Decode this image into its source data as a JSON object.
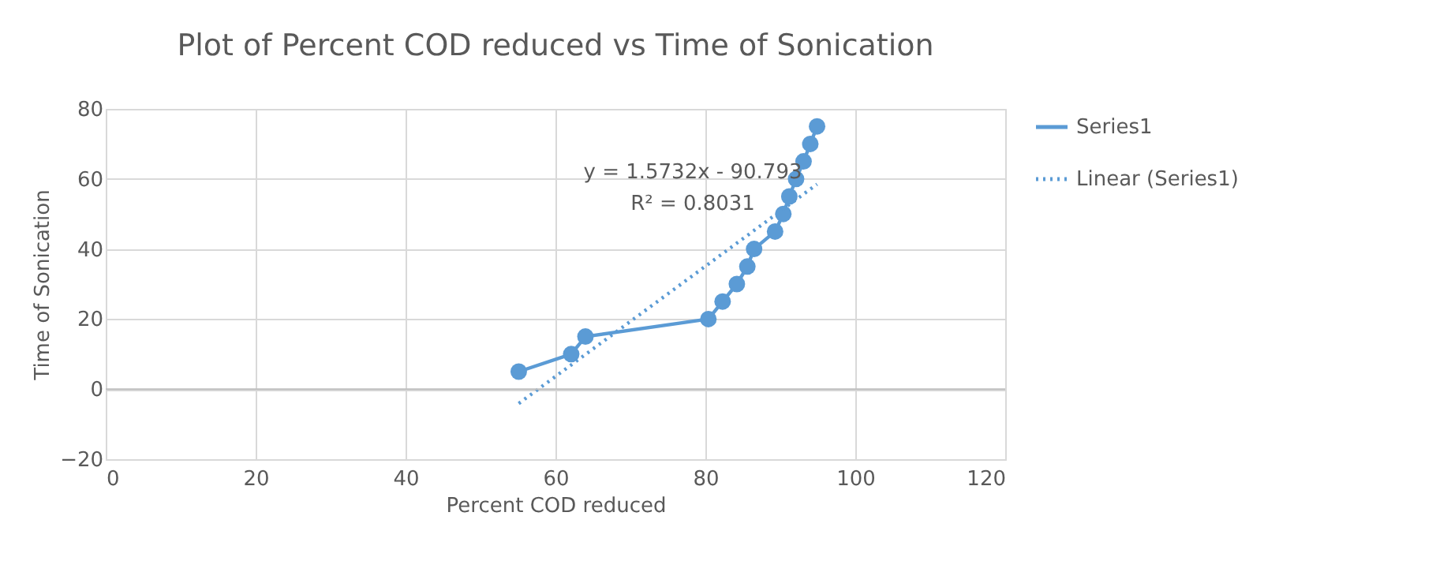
{
  "chart_data": {
    "type": "line",
    "title": "Plot of Percent COD reduced vs Time of Sonication",
    "xlabel": "Percent COD reduced",
    "ylabel": "Time of Sonication",
    "series": [
      {
        "name": "Series1",
        "marker": "circle",
        "line_style": "solid",
        "color": "#5b9bd5",
        "x": [
          55.1,
          62.1,
          64.0,
          80.4,
          82.3,
          84.2,
          85.6,
          86.5,
          89.3,
          90.4,
          91.2,
          92.1,
          93.1,
          94.0,
          94.9
        ],
        "values": [
          5,
          10,
          15,
          20,
          25,
          30,
          35,
          40,
          45,
          50,
          55,
          60,
          65,
          70,
          75
        ]
      },
      {
        "name": "Linear (Series1)",
        "marker": "none",
        "line_style": "dotted",
        "color": "#5b9bd5",
        "x": [
          55.1,
          94.9
        ],
        "values": [
          -4.1,
          58.5
        ]
      }
    ],
    "annotations": [
      "y = 1.5732x - 90.793",
      "R² = 0.8031"
    ],
    "xlim": [
      0,
      120
    ],
    "xticks": [
      0,
      20,
      40,
      60,
      80,
      100,
      120
    ],
    "ylim": [
      -20,
      80
    ],
    "yticks": [
      -20,
      0,
      20,
      40,
      60,
      80
    ],
    "grid": true,
    "legend": "right"
  }
}
